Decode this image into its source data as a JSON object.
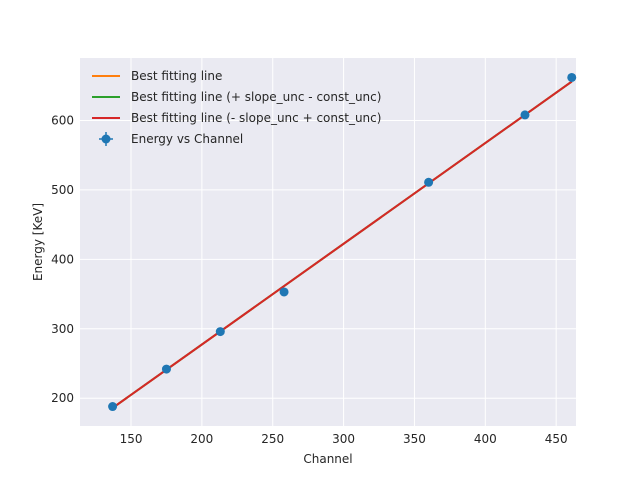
{
  "chart_data": {
    "type": "line",
    "title": "",
    "xlabel": "Channel",
    "ylabel": "Energy [KeV]",
    "xlim": [
      114,
      464
    ],
    "ylim": [
      160,
      690
    ],
    "xticks": [
      150,
      200,
      250,
      300,
      350,
      400,
      450
    ],
    "yticks": [
      200,
      300,
      400,
      500,
      600
    ],
    "grid": true,
    "legend_position": "top-left",
    "colors": {
      "background": "#eaeaf2",
      "grid": "#ffffff",
      "points": "#1f77b4",
      "fit": "#ff7f0e",
      "fit_plus": "#2ca02c",
      "fit_minus": "#d62728"
    },
    "series": [
      {
        "name": "Best fitting line",
        "kind": "line",
        "color": "#ff7f0e",
        "x": [
          137,
          461
        ],
        "y": [
          186,
          656
        ]
      },
      {
        "name": "Best fitting line (+ slope_unc - const_unc)",
        "kind": "line",
        "color": "#2ca02c",
        "x": [
          137,
          461
        ],
        "y": [
          186,
          656
        ]
      },
      {
        "name": "Best fitting line (- slope_unc + const_unc)",
        "kind": "line",
        "color": "#d62728",
        "x": [
          137,
          461
        ],
        "y": [
          186,
          656
        ]
      },
      {
        "name": "Energy vs Channel",
        "kind": "scatter",
        "color": "#1f77b4",
        "x": [
          137,
          175,
          213,
          258,
          360,
          428,
          461
        ],
        "y": [
          188,
          242,
          296,
          353,
          511,
          608,
          662
        ]
      }
    ]
  }
}
